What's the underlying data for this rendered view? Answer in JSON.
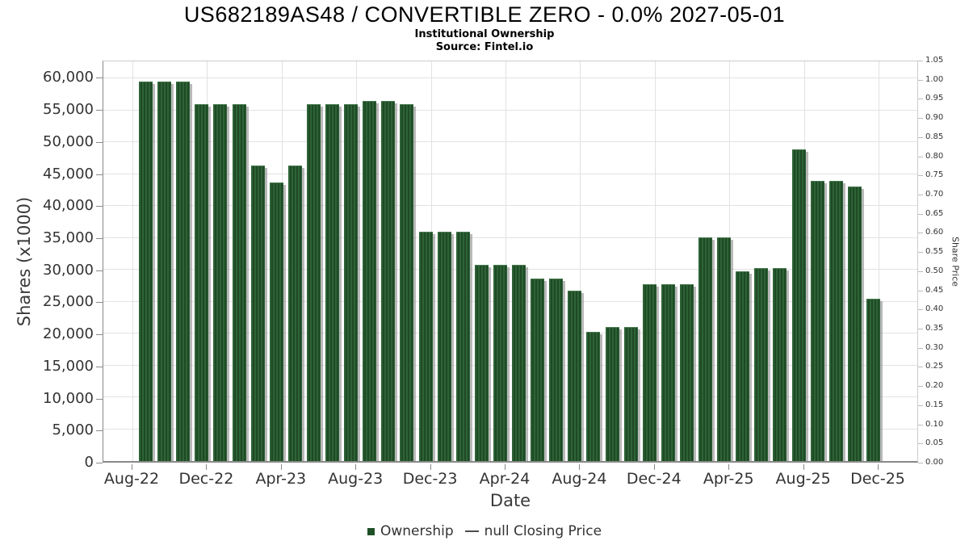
{
  "header": {
    "title": "US682189AS48 / CONVERTIBLE ZERO - 0.0% 2027-05-01",
    "subtitle": "Institutional Ownership",
    "source": "Source: Fintel.io"
  },
  "chart_data": {
    "type": "bar",
    "title": "US682189AS48 / CONVERTIBLE ZERO - 0.0% 2027-05-01",
    "subtitle": "Institutional Ownership",
    "source": "Source: Fintel.io",
    "xlabel": "Date",
    "ylabel_left": "Shares (x1000)",
    "ylabel_right": "Share Price",
    "x_tick_labels": [
      "Aug-22",
      "Dec-22",
      "Apr-23",
      "Aug-23",
      "Dec-23",
      "Apr-24",
      "Aug-24",
      "Dec-24",
      "Apr-25",
      "Aug-25",
      "Dec-25"
    ],
    "y_left_tick_labels": [
      "0",
      "5,000",
      "10,000",
      "15,000",
      "20,000",
      "25,000",
      "30,000",
      "35,000",
      "40,000",
      "45,000",
      "50,000",
      "55,000",
      "60,000"
    ],
    "y_left_tick_values": [
      0,
      5000,
      10000,
      15000,
      20000,
      25000,
      30000,
      35000,
      40000,
      45000,
      50000,
      55000,
      60000
    ],
    "y_right_tick_labels": [
      "0.00",
      "0.05",
      "0.10",
      "0.15",
      "0.20",
      "0.25",
      "0.30",
      "0.35",
      "0.40",
      "0.45",
      "0.50",
      "0.55",
      "0.60",
      "0.65",
      "0.70",
      "0.75",
      "0.80",
      "0.85",
      "0.90",
      "0.95",
      "1.00",
      "1.05"
    ],
    "ylim_left": [
      0,
      62700
    ],
    "ylim_right": [
      0,
      1.05
    ],
    "grid": true,
    "legend_position": "bottom",
    "series": [
      {
        "name": "Ownership",
        "type": "bar",
        "color": "#265a2e",
        "values": [
          59400,
          59400,
          59400,
          55800,
          55800,
          55800,
          46200,
          43600,
          46200,
          55800,
          55800,
          55800,
          56400,
          56400,
          55800,
          35800,
          35800,
          35800,
          30700,
          30700,
          30700,
          28500,
          28500,
          26600,
          20100,
          20900,
          20900,
          27600,
          27600,
          27600,
          35000,
          35000,
          29600,
          30100,
          30100,
          48800,
          43800,
          43800,
          43000,
          25300
        ]
      },
      {
        "name": "null Closing Price",
        "type": "line",
        "values": []
      }
    ]
  },
  "colors": {
    "bar_green": "#265a2e",
    "bar_stripe_light": "#2e6336",
    "bar_stripe_dark": "#1e4a26",
    "legend_swatch": "#1f5128",
    "gridline": "#e2e2e2",
    "axis_line": "#898989"
  }
}
